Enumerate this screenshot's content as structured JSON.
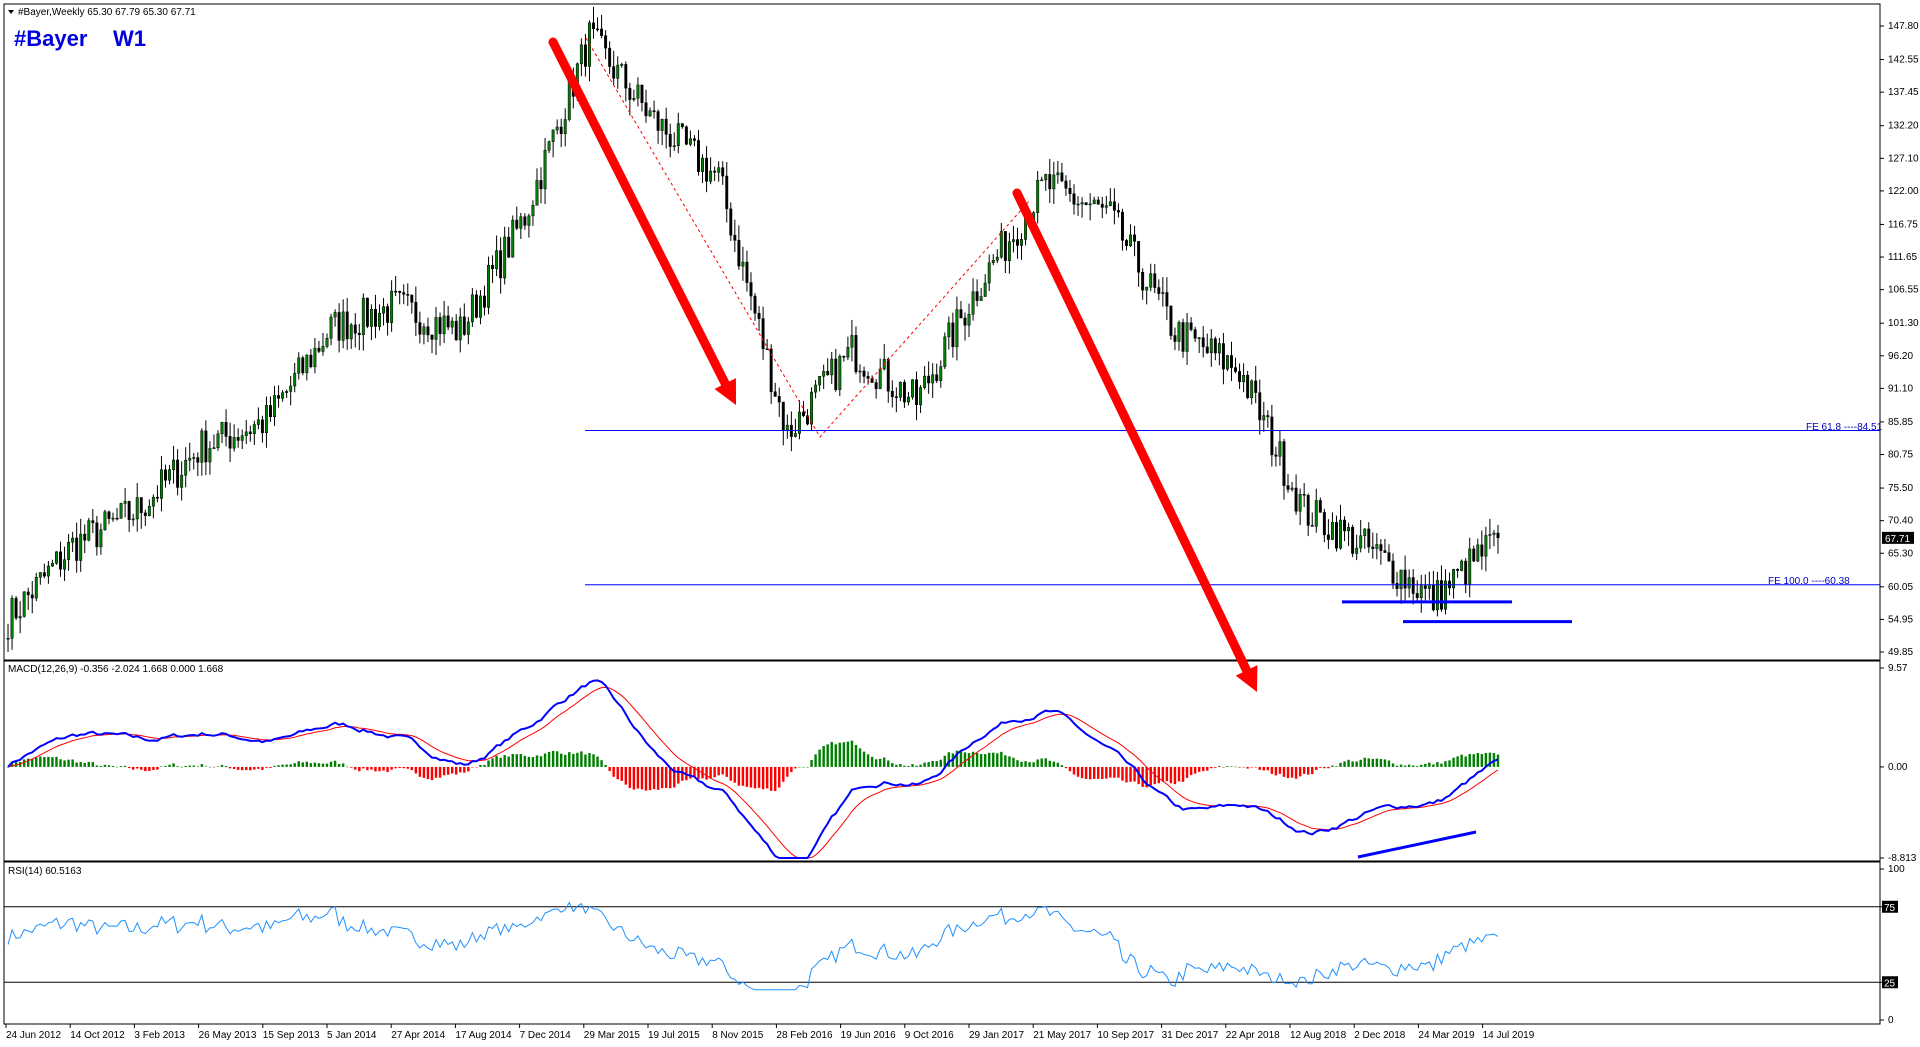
{
  "header": {
    "symbol_info": "#Bayer,Weekly  65.30 67.79 65.30 67.71",
    "symbol_label": "#Bayer",
    "timeframe_label": "W1"
  },
  "price_axis": {
    "ticks": [
      "147.80",
      "142.55",
      "137.45",
      "132.20",
      "127.10",
      "122.00",
      "116.75",
      "111.65",
      "106.55",
      "101.30",
      "96.20",
      "91.10",
      "85.85",
      "80.75",
      "75.50",
      "70.40",
      "65.30",
      "60.05",
      "54.95",
      "49.85"
    ],
    "current_price": "67.71"
  },
  "fe_levels": [
    {
      "label": "FE 61.8 ----84.51",
      "value": 84.51
    },
    {
      "label": "FE 100.0 ----60.38",
      "value": 60.38
    }
  ],
  "macd_panel": {
    "label": "MACD(12,26,9) -0.356 -2.024 1.668 0.000 1.668",
    "ticks": [
      "9.57",
      "0.00",
      "-8.813"
    ]
  },
  "rsi_panel": {
    "label": "RSI(14) 60.5163",
    "ticks": [
      "100",
      "75",
      "25",
      "0"
    ]
  },
  "x_axis": {
    "labels": [
      "24 Jun 2012",
      "14 Oct 2012",
      "3 Feb 2013",
      "26 May 2013",
      "15 Sep 2013",
      "5 Jan 2014",
      "27 Apr 2014",
      "17 Aug 2014",
      "7 Dec 2014",
      "29 Mar 2015",
      "19 Jul 2015",
      "8 Nov 2015",
      "28 Feb 2016",
      "19 Jun 2016",
      "9 Oct 2016",
      "29 Jan 2017",
      "21 May 2017",
      "10 Sep 2017",
      "31 Dec 2017",
      "22 Apr 2018",
      "12 Aug 2018",
      "2 Dec 2018",
      "24 Mar 2019",
      "14 Jul 2019"
    ]
  },
  "chart_data": {
    "type": "candlestick",
    "symbol": "#Bayer",
    "timeframe": "W1",
    "ylim": [
      49.85,
      147.8
    ],
    "price_path": [
      {
        "date": "24 Jun 2012",
        "close": 55.0
      },
      {
        "date": "14 Oct 2012",
        "close": 66.5
      },
      {
        "date": "3 Feb 2013",
        "close": 72.0
      },
      {
        "date": "26 May 2013",
        "close": 82.0
      },
      {
        "date": "15 Sep 2013",
        "close": 86.0
      },
      {
        "date": "5 Jan 2014",
        "close": 100.5
      },
      {
        "date": "27 Apr 2014",
        "close": 104.0
      },
      {
        "date": "17 Aug 2014",
        "close": 100.0
      },
      {
        "date": "7 Dec 2014",
        "close": 118.0
      },
      {
        "date": "29 Mar 2015",
        "close": 146.0
      },
      {
        "date": "19 Jul 2015",
        "close": 133.0
      },
      {
        "date": "8 Nov 2015",
        "close": 124.0
      },
      {
        "date": "28 Feb 2016",
        "close": 84.0
      },
      {
        "date": "19 Jun 2016",
        "close": 97.0
      },
      {
        "date": "9 Oct 2016",
        "close": 89.0
      },
      {
        "date": "29 Jan 2017",
        "close": 108.0
      },
      {
        "date": "21 May 2017",
        "close": 123.0
      },
      {
        "date": "10 Sep 2017",
        "close": 118.0
      },
      {
        "date": "31 Dec 2017",
        "close": 100.0
      },
      {
        "date": "22 Apr 2018",
        "close": 94.0
      },
      {
        "date": "12 Aug 2018",
        "close": 72.0
      },
      {
        "date": "2 Dec 2018",
        "close": 66.0
      },
      {
        "date": "24 Mar 2019",
        "close": 58.0
      },
      {
        "date": "14 Jul 2019",
        "close": 67.71
      }
    ],
    "support_lines": [
      57.7,
      54.6
    ],
    "fe_levels": [
      84.51,
      60.38
    ],
    "macd": {
      "series": "MACD(12,26,9)",
      "ylim": [
        -8.813,
        9.57
      ]
    },
    "rsi": {
      "series": "RSI(14)",
      "levels": [
        75,
        25
      ],
      "last": 60.5163
    }
  },
  "colors": {
    "bull_candle": "#008000",
    "bear_candle": "#000000",
    "fe_line": "#0000ff",
    "arrow": "#ff0000",
    "macd_line": "#0000ff",
    "signal_line": "#ff0000",
    "rsi_line": "#1e90ff",
    "histogram_pos": "#008000",
    "histogram_neg": "#ff0000"
  }
}
